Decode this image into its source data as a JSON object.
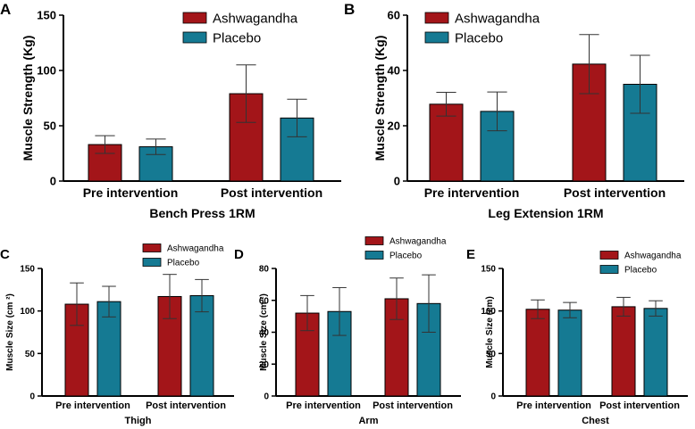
{
  "colors": {
    "ashwagandha": "#A31519",
    "placebo": "#157A93",
    "axis": "#000000"
  },
  "chart_data": [
    {
      "panel_label": "A",
      "type": "bar",
      "categories": [
        "Pre intervention",
        "Post intervention"
      ],
      "series": [
        {
          "name": "Ashwagandha",
          "values": [
            33,
            79
          ],
          "errors": [
            8,
            26
          ]
        },
        {
          "name": "Placebo",
          "values": [
            31,
            57
          ],
          "errors": [
            7,
            17
          ]
        }
      ],
      "xlabel": "Bench Press 1RM",
      "ylabel": "Muscle Strength (Kg)",
      "ylim": [
        0,
        150
      ],
      "yticks": [
        "0",
        "50",
        "100",
        "150"
      ],
      "legend": "top",
      "grid": false
    },
    {
      "panel_label": "B",
      "type": "bar",
      "categories": [
        "Pre intervention",
        "Post intervention"
      ],
      "series": [
        {
          "name": "Ashwagandha",
          "values": [
            27.8,
            42.3
          ],
          "errors": [
            4.3,
            10.7
          ]
        },
        {
          "name": "Placebo",
          "values": [
            25.2,
            35
          ],
          "errors": [
            7,
            10.5
          ]
        }
      ],
      "xlabel": "Leg Extension 1RM",
      "ylabel": "Muscle Strength (Kg)",
      "ylim": [
        0,
        60
      ],
      "yticks": [
        "0",
        "20",
        "40",
        "60"
      ],
      "legend": "top",
      "grid": false
    },
    {
      "panel_label": "C",
      "type": "bar",
      "categories": [
        "Pre intervention",
        "Post intervention"
      ],
      "series": [
        {
          "name": "Ashwagandha",
          "values": [
            108,
            117
          ],
          "errors": [
            25,
            26
          ]
        },
        {
          "name": "Placebo",
          "values": [
            111,
            118
          ],
          "errors": [
            18,
            19
          ]
        }
      ],
      "xlabel": "Thigh",
      "ylabel": "Muscle Size (cm ²)",
      "ylim": [
        0,
        150
      ],
      "yticks": [
        "0",
        "50",
        "100",
        "150"
      ],
      "legend": "top",
      "grid": false
    },
    {
      "panel_label": "D",
      "type": "bar",
      "categories": [
        "Pre intervention",
        "Post intervention"
      ],
      "series": [
        {
          "name": "Ashwagandha",
          "values": [
            52,
            61
          ],
          "errors": [
            11,
            13
          ]
        },
        {
          "name": "Placebo",
          "values": [
            53,
            58
          ],
          "errors": [
            15,
            18
          ]
        }
      ],
      "xlabel": "Arm",
      "ylabel": "Muscle Size (cm ²)",
      "ylim": [
        0,
        80
      ],
      "yticks": [
        "0",
        "20",
        "40",
        "60",
        "80"
      ],
      "legend": "top",
      "grid": false
    },
    {
      "panel_label": "E",
      "type": "bar",
      "categories": [
        "Pre intervention",
        "Post intervention"
      ],
      "series": [
        {
          "name": "Ashwagandha",
          "values": [
            102,
            105
          ],
          "errors": [
            11,
            11
          ]
        },
        {
          "name": "Placebo",
          "values": [
            101,
            103
          ],
          "errors": [
            9,
            9
          ]
        }
      ],
      "xlabel": "Chest",
      "ylabel": "Muscle Size (cm)",
      "ylim": [
        0,
        150
      ],
      "yticks": [
        "0",
        "50",
        "100",
        "150"
      ],
      "legend": "top",
      "grid": false
    }
  ]
}
